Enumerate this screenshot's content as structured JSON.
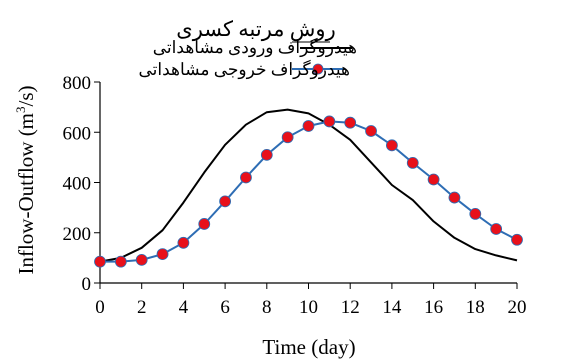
{
  "chart_data": {
    "type": "line",
    "title": "روش مرتبه کسری",
    "xlabel": "Time (day)",
    "ylabel": "Inflow-Outflow (m³/s)",
    "ylabel_base": "Inflow-Outflow (m",
    "ylabel_sup": "3",
    "ylabel_end": "/s)",
    "xlim": [
      0,
      20
    ],
    "ylim": [
      0,
      800
    ],
    "xticks": [
      0,
      2,
      4,
      6,
      8,
      10,
      12,
      14,
      16,
      18,
      20
    ],
    "yticks": [
      0,
      200,
      400,
      600,
      800
    ],
    "grid": false,
    "legend": "top-right",
    "series": [
      {
        "name": "هیدروگراف ورودی مشاهداتی",
        "color": "#000000",
        "marker": "none",
        "x": [
          0,
          1,
          2,
          3,
          4,
          5,
          6,
          7,
          8,
          9,
          10,
          11,
          12,
          13,
          14,
          15,
          16,
          17,
          18,
          19,
          20
        ],
        "y": [
          85,
          100,
          140,
          210,
          320,
          440,
          550,
          630,
          680,
          690,
          675,
          630,
          570,
          480,
          390,
          330,
          245,
          180,
          135,
          110,
          90
        ]
      },
      {
        "name": "هیدروگراف خروجی مشاهداتی",
        "color": "#2e6db4",
        "marker_color": "#e8101a",
        "marker": "circle",
        "x": [
          0,
          1,
          2,
          3,
          4,
          5,
          6,
          7,
          8,
          9,
          10,
          11,
          12,
          13,
          14,
          15,
          16,
          17,
          18,
          19,
          20
        ],
        "y": [
          85,
          85,
          92,
          115,
          160,
          235,
          325,
          420,
          510,
          580,
          625,
          643,
          638,
          605,
          548,
          478,
          412,
          340,
          275,
          215,
          172
        ]
      }
    ]
  }
}
